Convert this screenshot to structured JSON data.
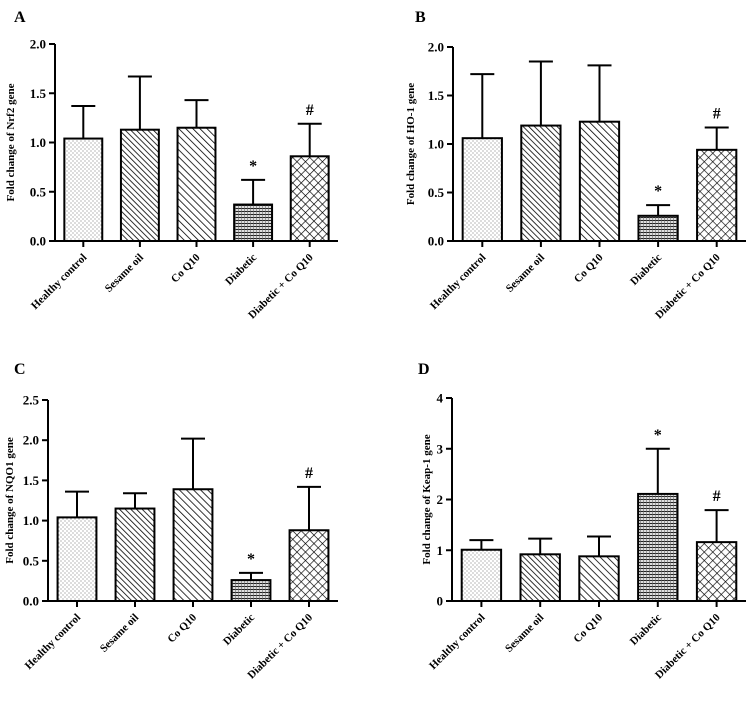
{
  "figure_title": "",
  "chart_data": [
    {
      "panel": "A",
      "type": "bar",
      "title": "",
      "xlabel": "",
      "ylabel": "Fold change of Nrf2 gene",
      "categories": [
        "Healthy control",
        "Sesame oil",
        "Co Q10",
        "Diabetic",
        "Diabetic + Co Q10"
      ],
      "values": [
        1.04,
        1.13,
        1.15,
        0.37,
        0.86
      ],
      "errors": [
        0.33,
        0.54,
        0.28,
        0.25,
        0.33
      ],
      "annotations": [
        "",
        "",
        "",
        "*",
        "#"
      ],
      "ylim": [
        0,
        2.0
      ],
      "yticks": [
        0.0,
        0.5,
        1.0,
        1.5,
        2.0
      ],
      "ytick_labels": [
        "0.0",
        "0.5",
        "1.0",
        "1.5",
        "2.0"
      ],
      "grid": false
    },
    {
      "panel": "B",
      "type": "bar",
      "title": "",
      "xlabel": "",
      "ylabel": "Fold change of HO-1 gene",
      "categories": [
        "Healthy control",
        "Sesame oil",
        "Co Q10",
        "Diabetic",
        "Diabetic + Co Q10"
      ],
      "values": [
        1.06,
        1.19,
        1.23,
        0.26,
        0.94
      ],
      "errors": [
        0.66,
        0.66,
        0.58,
        0.11,
        0.23
      ],
      "annotations": [
        "",
        "",
        "",
        "*",
        "#"
      ],
      "ylim": [
        0,
        2.0
      ],
      "yticks": [
        0.0,
        0.5,
        1.0,
        1.5,
        2.0
      ],
      "ytick_labels": [
        "0.0",
        "0.5",
        "1.0",
        "1.5",
        "2.0"
      ],
      "grid": false
    },
    {
      "panel": "C",
      "type": "bar",
      "title": "",
      "xlabel": "",
      "ylabel": "Fold change of NQO1 gene",
      "categories": [
        "Healthy control",
        "Sesame oil",
        "Co Q10",
        "Diabetic",
        "Diabetic + Co Q10"
      ],
      "values": [
        1.04,
        1.15,
        1.39,
        0.26,
        0.88
      ],
      "errors": [
        0.32,
        0.19,
        0.63,
        0.09,
        0.54
      ],
      "annotations": [
        "",
        "",
        "",
        "*",
        "#"
      ],
      "ylim": [
        0,
        2.5
      ],
      "yticks": [
        0.0,
        0.5,
        1.0,
        1.5,
        2.0,
        2.5
      ],
      "ytick_labels": [
        "0.0",
        "0.5",
        "1.0",
        "1.5",
        "2.0",
        "2.5"
      ],
      "grid": false
    },
    {
      "panel": "D",
      "type": "bar",
      "title": "",
      "xlabel": "",
      "ylabel": "Fold change of Keap-1 gene",
      "categories": [
        "Healthy control",
        "Sesame oil",
        "Co Q10",
        "Diabetic",
        "Diabetic + Co Q10"
      ],
      "values": [
        1.01,
        0.92,
        0.88,
        2.11,
        1.16
      ],
      "errors": [
        0.19,
        0.31,
        0.39,
        0.89,
        0.63
      ],
      "annotations": [
        "",
        "",
        "",
        "*",
        "#"
      ],
      "ylim": [
        0,
        4
      ],
      "yticks": [
        0,
        1,
        2,
        3,
        4
      ],
      "ytick_labels": [
        "0",
        "1",
        "2",
        "3",
        "4"
      ],
      "grid": false
    }
  ]
}
